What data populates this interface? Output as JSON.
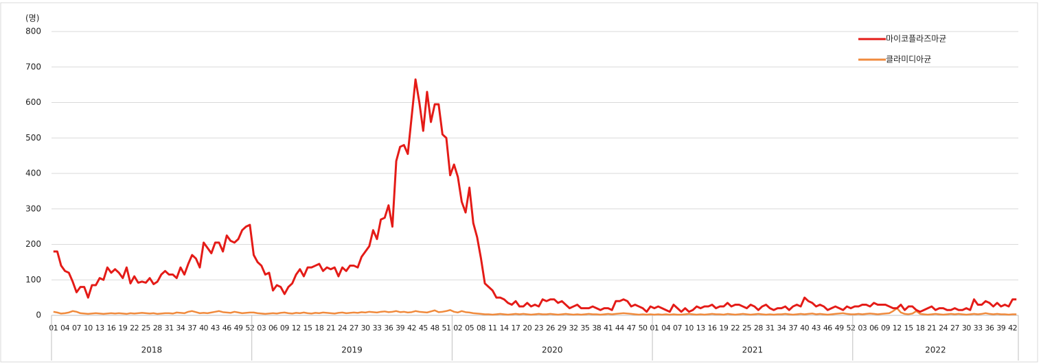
{
  "chart_data": {
    "type": "line",
    "y_unit_label": "(명)",
    "categories": [
      "01",
      null,
      null,
      "04",
      null,
      null,
      "07",
      null,
      null,
      "10",
      null,
      null,
      "13",
      null,
      null,
      "16",
      null,
      null,
      "19",
      null,
      null,
      "22",
      null,
      null,
      "25",
      null,
      null,
      "28",
      null,
      null,
      "31",
      null,
      null,
      "34",
      null,
      null,
      "37",
      null,
      null,
      "40",
      null,
      null,
      "43",
      null,
      null,
      "46",
      null,
      null,
      "49",
      null,
      null,
      "52",
      null,
      null,
      "03",
      null,
      null,
      "06",
      null,
      null,
      "09",
      null,
      null,
      "12",
      null,
      null,
      "15",
      null,
      null,
      "18",
      null,
      null,
      "21",
      null,
      null,
      "24",
      null,
      null,
      "27",
      null,
      null,
      "30",
      null,
      null,
      "33",
      null,
      null,
      "36",
      null,
      null,
      "39",
      null,
      null,
      "42",
      null,
      null,
      "45",
      null,
      null,
      "48",
      null,
      null,
      "51",
      null,
      null,
      "02",
      null,
      null,
      "05",
      null,
      null,
      "08",
      null,
      null,
      "11",
      null,
      null,
      "14",
      null,
      null,
      "17",
      null,
      null,
      "20",
      null,
      null,
      "23",
      null,
      null,
      "26",
      null,
      null,
      "29",
      null,
      null,
      "32",
      null,
      null,
      "35",
      null,
      null,
      "38",
      null,
      null,
      "41",
      null,
      null,
      "44",
      null,
      null,
      "47",
      null,
      null,
      "50",
      null,
      null,
      "01",
      null,
      null,
      "04",
      null,
      null,
      "07",
      null,
      null,
      "10",
      null,
      null,
      "13",
      null,
      null,
      "16",
      null,
      null,
      "19",
      null,
      null,
      "22",
      null,
      null,
      "25",
      null,
      null,
      "28",
      null,
      null,
      "31",
      null,
      null,
      "34",
      null,
      null,
      "37",
      null,
      null,
      "40",
      null,
      null,
      "43",
      null,
      null,
      "46",
      null,
      null,
      "49",
      null,
      null,
      "52",
      null,
      null,
      "03",
      null,
      null,
      "06",
      null,
      null,
      "09",
      null,
      null,
      "12",
      null,
      null,
      "15",
      null,
      null,
      "18",
      null,
      null,
      "21",
      null,
      null,
      "24",
      null,
      null,
      "27",
      null,
      null,
      "30",
      null,
      null,
      "33",
      null,
      null,
      "36",
      null,
      null,
      "39",
      null,
      null,
      "42",
      null
    ],
    "groups": [
      {
        "label": "2018",
        "count": 52
      },
      {
        "label": "2019",
        "count": 52
      },
      {
        "label": "2020",
        "count": 52
      },
      {
        "label": "2021",
        "count": 52
      },
      {
        "label": "2022",
        "count": 43
      }
    ],
    "series": [
      {
        "name": "마이코플라즈마균",
        "color": "#e41b17",
        "values": [
          180,
          180,
          140,
          125,
          120,
          95,
          65,
          80,
          80,
          50,
          85,
          85,
          105,
          100,
          135,
          120,
          130,
          120,
          105,
          135,
          90,
          110,
          92,
          95,
          92,
          105,
          88,
          95,
          115,
          125,
          115,
          115,
          105,
          135,
          115,
          145,
          170,
          160,
          135,
          205,
          190,
          175,
          205,
          205,
          180,
          225,
          210,
          205,
          215,
          240,
          250,
          255,
          170,
          150,
          140,
          115,
          120,
          70,
          85,
          80,
          60,
          80,
          90,
          115,
          130,
          110,
          135,
          135,
          140,
          145,
          125,
          135,
          130,
          135,
          110,
          135,
          125,
          140,
          140,
          135,
          165,
          180,
          195,
          240,
          215,
          270,
          275,
          310,
          250,
          435,
          475,
          480,
          455,
          560,
          665,
          600,
          520,
          630,
          545,
          595,
          595,
          510,
          500,
          395,
          425,
          390,
          320,
          290,
          360,
          260,
          220,
          160,
          90,
          80,
          70,
          50,
          50,
          45,
          35,
          30,
          40,
          25,
          25,
          35,
          25,
          30,
          25,
          45,
          40,
          45,
          45,
          35,
          40,
          30,
          20,
          25,
          30,
          20,
          20,
          20,
          25,
          20,
          15,
          20,
          20,
          15,
          40,
          40,
          45,
          40,
          25,
          30,
          25,
          20,
          10,
          25,
          20,
          25,
          20,
          15,
          10,
          30,
          20,
          10,
          20,
          10,
          15,
          25,
          20,
          25,
          25,
          30,
          20,
          25,
          25,
          35,
          25,
          30,
          30,
          25,
          20,
          30,
          25,
          15,
          25,
          30,
          20,
          15,
          20,
          20,
          25,
          15,
          25,
          30,
          25,
          50,
          40,
          35,
          25,
          30,
          25,
          15,
          20,
          25,
          20,
          15,
          25,
          20,
          25,
          25,
          30,
          30,
          25,
          35,
          30,
          30,
          30,
          25,
          20,
          20,
          30,
          15,
          25,
          25,
          15,
          10,
          15,
          20,
          25,
          15,
          20,
          20,
          15,
          15,
          20,
          15,
          15,
          20,
          15,
          45,
          30,
          30,
          40,
          35,
          25,
          35,
          25,
          30,
          25,
          45,
          45
        ]
      },
      {
        "name": "클라미디아균",
        "color": "#f08a3c",
        "values": [
          10,
          8,
          5,
          6,
          8,
          12,
          10,
          6,
          5,
          4,
          5,
          6,
          5,
          4,
          5,
          6,
          5,
          6,
          5,
          4,
          6,
          5,
          6,
          7,
          6,
          5,
          6,
          4,
          5,
          6,
          6,
          5,
          8,
          7,
          6,
          10,
          12,
          9,
          6,
          7,
          6,
          8,
          10,
          12,
          9,
          8,
          7,
          10,
          8,
          6,
          7,
          8,
          8,
          6,
          5,
          4,
          5,
          6,
          5,
          7,
          8,
          6,
          5,
          7,
          6,
          8,
          6,
          5,
          7,
          6,
          8,
          7,
          6,
          5,
          7,
          8,
          6,
          7,
          8,
          7,
          9,
          8,
          10,
          9,
          8,
          10,
          11,
          9,
          10,
          12,
          9,
          10,
          8,
          9,
          12,
          10,
          9,
          8,
          11,
          14,
          9,
          10,
          12,
          15,
          10,
          8,
          12,
          9,
          8,
          6,
          5,
          4,
          3,
          3,
          2,
          3,
          4,
          3,
          2,
          3,
          4,
          3,
          4,
          3,
          2,
          3,
          4,
          3,
          3,
          4,
          3,
          2,
          3,
          4,
          3,
          2,
          3,
          2,
          3,
          4,
          3,
          3,
          2,
          3,
          4,
          3,
          4,
          5,
          6,
          5,
          4,
          3,
          2,
          3,
          2,
          3,
          2,
          3,
          2,
          3,
          2,
          3,
          2,
          2,
          3,
          4,
          3,
          2,
          3,
          2,
          3,
          4,
          3,
          3,
          2,
          4,
          3,
          2,
          3,
          4,
          3,
          2,
          3,
          4,
          3,
          2,
          3,
          2,
          3,
          3,
          4,
          3,
          2,
          3,
          4,
          3,
          4,
          5,
          3,
          4,
          3,
          2,
          3,
          4,
          5,
          6,
          4,
          3,
          3,
          4,
          3,
          4,
          5,
          4,
          3,
          4,
          5,
          6,
          12,
          20,
          8,
          4,
          3,
          5,
          12,
          4,
          3,
          2,
          3,
          4,
          3,
          2,
          3,
          4,
          3,
          4,
          3,
          2,
          3,
          4,
          3,
          4,
          6,
          4,
          3,
          4,
          3,
          3,
          2,
          3,
          3
        ]
      }
    ],
    "ylim": [
      0,
      800
    ],
    "yticks": [
      0,
      100,
      200,
      300,
      400,
      500,
      600,
      700,
      800
    ],
    "grid": true,
    "legend": "top-right"
  }
}
